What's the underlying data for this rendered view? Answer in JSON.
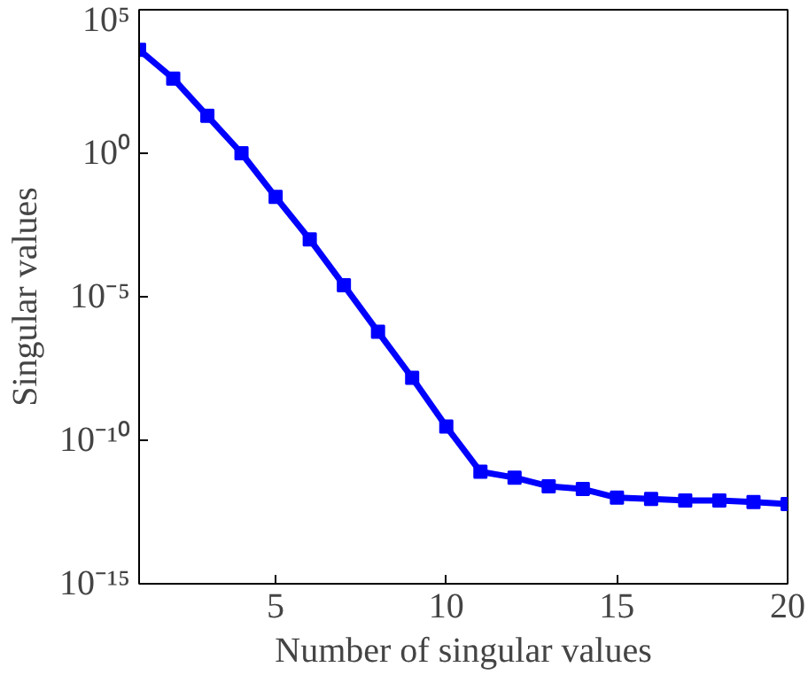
{
  "chart_data": {
    "type": "line",
    "xlabel": "Number of singular values",
    "ylabel": "Singular values",
    "log": "y",
    "grid": false,
    "marker": "square",
    "line_style": "solid",
    "x": [
      1,
      2,
      3,
      4,
      5,
      6,
      7,
      8,
      9,
      10,
      11,
      12,
      13,
      14,
      15,
      16,
      17,
      18,
      19,
      20
    ],
    "series": [
      {
        "color": "#0000ff",
        "values": [
          4000.0,
          400.0,
          20.0,
          1,
          0.03,
          0.001,
          2.5e-05,
          6e-07,
          1.5e-08,
          3e-10,
          8e-12,
          5e-12,
          2.5e-12,
          2e-12,
          1e-12,
          9e-13,
          8e-13,
          8e-13,
          7e-13,
          6e-13
        ]
      }
    ],
    "xlim": [
      1,
      20
    ],
    "xticks": [
      5,
      10,
      15,
      20
    ],
    "ylim": [
      1e-15,
      100000.0
    ],
    "yticks": [
      {
        "value": 1e-15,
        "label": "10⁻¹⁵"
      },
      {
        "value": 1e-10,
        "label": "10⁻¹⁰"
      },
      {
        "value": 1e-05,
        "label": "10⁻⁵"
      },
      {
        "value": 1,
        "label": "10⁰"
      },
      {
        "value": 100000.0,
        "label": "10⁵"
      }
    ]
  }
}
